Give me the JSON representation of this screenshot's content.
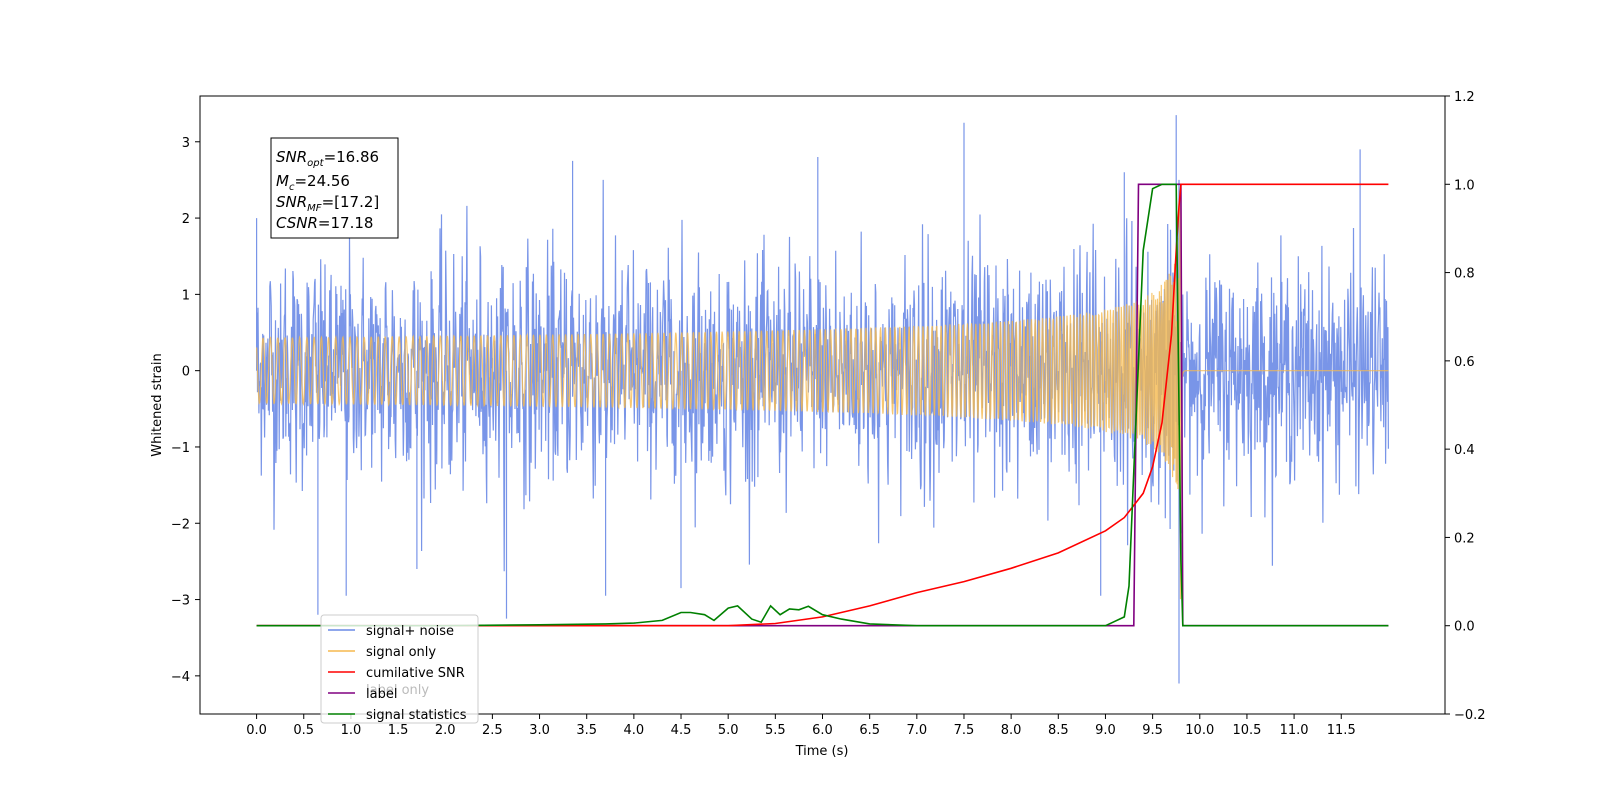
{
  "chart_data": {
    "type": "line",
    "xlabel": "Time (s)",
    "ylabel": "Whitened strain",
    "xlim": [
      -0.6,
      12.6
    ],
    "ylim": [
      -4.5,
      3.6
    ],
    "y2lim": [
      -0.2,
      1.2
    ],
    "x_ticks": [
      "0.0",
      "0.5",
      "1.0",
      "1.5",
      "2.0",
      "2.5",
      "3.0",
      "3.5",
      "4.0",
      "4.5",
      "5.0",
      "5.5",
      "6.0",
      "6.5",
      "7.0",
      "7.5",
      "8.0",
      "8.5",
      "9.0",
      "9.5",
      "10.0",
      "10.5",
      "11.0",
      "11.5"
    ],
    "y_ticks": [
      "3",
      "2",
      "1",
      "0",
      "−1",
      "−2",
      "−3",
      "−4"
    ],
    "y2_ticks": [
      "1.2",
      "1.0",
      "0.8",
      "0.6",
      "0.4",
      "0.2",
      "0.0",
      "−0.2"
    ],
    "annotation": {
      "lines": [
        {
          "base": "SNR",
          "sub": "opt",
          "value": "=16.86"
        },
        {
          "base": "M",
          "sub": "c",
          "value": "=24.56"
        },
        {
          "base": "SNR",
          "sub": "MF",
          "value": "=[17.2]"
        },
        {
          "base": "CSNR",
          "sub": "",
          "value": "=17.18"
        }
      ]
    },
    "legend": {
      "placement": "lower-left",
      "entries": [
        {
          "label": "signal+ noise",
          "color": "#6a8ae6"
        },
        {
          "label": "signal only",
          "color": "#f5b94e"
        },
        {
          "label": "cumilative SNR",
          "color": "#ff0000"
        },
        {
          "label": "label",
          "color": "#800080"
        },
        {
          "label": "signal statistics",
          "color": "#008000"
        }
      ],
      "overlapped_label": "label only"
    },
    "series": [
      {
        "name": "signal+ noise",
        "axis": "left",
        "color": "#6a8ae6",
        "x_range": [
          0.0,
          12.0
        ],
        "amplitude_typical": 1.7,
        "peaks": [
          {
            "x": 0.0,
            "y": 2.0
          },
          {
            "x": 0.65,
            "y": -3.2
          },
          {
            "x": 0.95,
            "y": -2.95
          },
          {
            "x": 1.7,
            "y": -2.6
          },
          {
            "x": 2.65,
            "y": -3.25
          },
          {
            "x": 3.35,
            "y": 2.75
          },
          {
            "x": 3.7,
            "y": -2.95
          },
          {
            "x": 4.5,
            "y": -2.85
          },
          {
            "x": 5.95,
            "y": 2.8
          },
          {
            "x": 7.5,
            "y": 3.25
          },
          {
            "x": 8.95,
            "y": -2.95
          },
          {
            "x": 9.2,
            "y": 2.6
          },
          {
            "x": 9.75,
            "y": 3.35
          },
          {
            "x": 9.78,
            "y": -4.1
          },
          {
            "x": 11.7,
            "y": 2.9
          }
        ]
      },
      {
        "name": "signal only",
        "axis": "left",
        "color": "#f5b94e",
        "x_range": [
          0.0,
          12.0
        ],
        "merger_time": 9.8,
        "peak_amplitude": 3.25
      },
      {
        "name": "cumilative SNR",
        "axis": "right",
        "color": "#ff0000",
        "x": [
          0.0,
          5.0,
          5.5,
          6.0,
          6.5,
          7.0,
          7.5,
          8.0,
          8.5,
          9.0,
          9.2,
          9.4,
          9.5,
          9.6,
          9.7,
          9.75,
          9.78,
          9.8,
          12.0
        ],
        "y": [
          0.0,
          0.0,
          0.005,
          0.02,
          0.045,
          0.075,
          0.1,
          0.13,
          0.165,
          0.215,
          0.245,
          0.3,
          0.36,
          0.46,
          0.66,
          0.85,
          0.95,
          1.0,
          1.0
        ]
      },
      {
        "name": "label",
        "axis": "right",
        "color": "#800080",
        "x": [
          0.0,
          9.3,
          9.35,
          9.8,
          9.82,
          12.0
        ],
        "y": [
          0.0,
          0.0,
          1.0,
          1.0,
          0.0,
          0.0
        ]
      },
      {
        "name": "signal statistics",
        "axis": "right",
        "color": "#008000",
        "x": [
          0.0,
          1.0,
          2.0,
          3.0,
          3.7,
          4.0,
          4.3,
          4.5,
          4.6,
          4.75,
          4.85,
          5.0,
          5.1,
          5.25,
          5.35,
          5.45,
          5.55,
          5.65,
          5.75,
          5.85,
          6.0,
          6.2,
          6.5,
          7.0,
          8.0,
          9.0,
          9.1,
          9.2,
          9.25,
          9.3,
          9.4,
          9.5,
          9.6,
          9.75,
          9.8,
          9.82,
          12.0
        ],
        "y": [
          0.0,
          0.0,
          0.0,
          0.002,
          0.004,
          0.006,
          0.012,
          0.03,
          0.03,
          0.025,
          0.012,
          0.04,
          0.045,
          0.015,
          0.008,
          0.045,
          0.025,
          0.038,
          0.036,
          0.044,
          0.025,
          0.015,
          0.004,
          0.0,
          0.0,
          0.0,
          0.01,
          0.02,
          0.09,
          0.35,
          0.85,
          0.99,
          1.0,
          1.0,
          0.15,
          0.0,
          0.0
        ]
      }
    ]
  }
}
